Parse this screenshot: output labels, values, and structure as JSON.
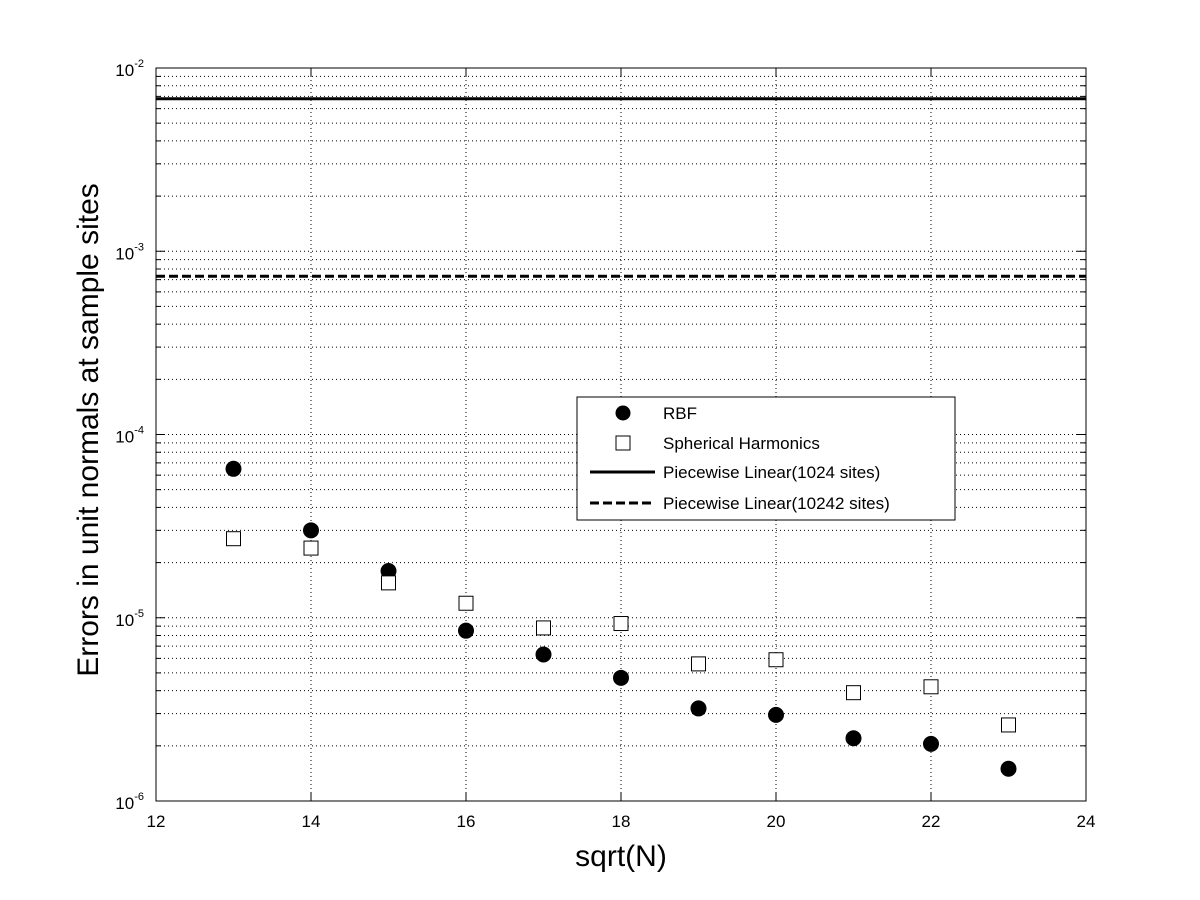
{
  "chart_data": {
    "type": "scatter",
    "title": "",
    "xlabel": "sqrt(N)",
    "ylabel": "Errors in unit normals at sample sites",
    "xlim": [
      12,
      24
    ],
    "ylim": [
      1e-06,
      0.01
    ],
    "yscale": "log",
    "grid": true,
    "legend_position": "center-right",
    "x_ticks": [
      12,
      14,
      16,
      18,
      20,
      22,
      24
    ],
    "x_tick_labels": [
      "12",
      "14",
      "16",
      "18",
      "20",
      "22",
      "24"
    ],
    "y_ticks": [
      {
        "value": 1e-06,
        "base": "10",
        "exp": "-6"
      },
      {
        "value": 1e-05,
        "base": "10",
        "exp": "-5"
      },
      {
        "value": 0.0001,
        "base": "10",
        "exp": "-4"
      },
      {
        "value": 0.001,
        "base": "10",
        "exp": "-3"
      },
      {
        "value": 0.01,
        "base": "10",
        "exp": "-2"
      }
    ],
    "series": [
      {
        "name": "RBF",
        "marker": "filled-circle",
        "x": [
          13,
          14,
          15,
          16,
          17,
          18,
          19,
          20,
          21,
          22,
          23
        ],
        "y": [
          6.5e-05,
          3e-05,
          1.8e-05,
          8.5e-06,
          6.3e-06,
          4.7e-06,
          3.2e-06,
          2.95e-06,
          2.2e-06,
          2.05e-06,
          1.5e-06
        ]
      },
      {
        "name": "Spherical Harmonics",
        "marker": "open-square",
        "x": [
          13,
          14,
          15,
          16,
          17,
          18,
          19,
          20,
          21,
          22,
          23
        ],
        "y": [
          2.7e-05,
          2.4e-05,
          1.55e-05,
          1.2e-05,
          8.8e-06,
          9.3e-06,
          5.6e-06,
          5.9e-06,
          3.9e-06,
          4.2e-06,
          2.6e-06
        ]
      },
      {
        "name": "Piecewise Linear(1024 sites)",
        "marker": "solid-line",
        "y_constant": 0.0068
      },
      {
        "name": "Piecewise Linear(10242 sites)",
        "marker": "dashed-line",
        "y_constant": 0.00073
      }
    ]
  }
}
